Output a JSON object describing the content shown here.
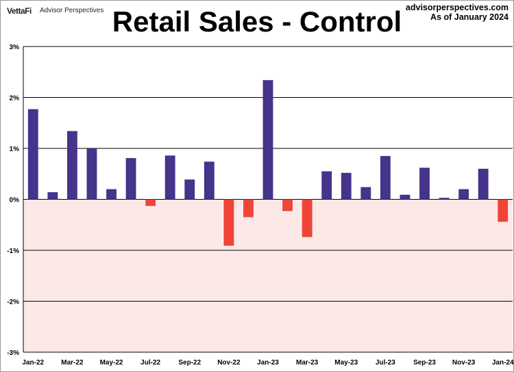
{
  "header": {
    "logo_brand": "VettaFi",
    "logo_sub": "Advisor Perspectives",
    "site": "advisorperspectives.com",
    "as_of": "As of January 2024"
  },
  "chart_data": {
    "type": "bar",
    "title": "Retail Sales - Control",
    "xlabel": "",
    "ylabel": "",
    "ylim": [
      -3,
      3
    ],
    "yticks": [
      3,
      2,
      1,
      0,
      -1,
      -2,
      -3
    ],
    "ytick_labels": [
      "3%",
      "2%",
      "1%",
      "0%",
      "-1%",
      "-2%",
      "-3%"
    ],
    "categories": [
      "Jan-22",
      "Feb-22",
      "Mar-22",
      "Apr-22",
      "May-22",
      "Jun-22",
      "Jul-22",
      "Aug-22",
      "Sep-22",
      "Oct-22",
      "Nov-22",
      "Dec-22",
      "Jan-23",
      "Feb-23",
      "Mar-23",
      "Apr-23",
      "May-23",
      "Jun-23",
      "Jul-23",
      "Aug-23",
      "Sep-23",
      "Oct-23",
      "Nov-23",
      "Dec-23",
      "Jan-24"
    ],
    "xtick_labels": [
      "Jan-22",
      "Mar-22",
      "May-22",
      "Jul-22",
      "Sep-22",
      "Nov-22",
      "Jan-23",
      "Mar-23",
      "May-23",
      "Jul-23",
      "Sep-23",
      "Nov-23",
      "Jan-24"
    ],
    "values": [
      1.77,
      0.14,
      1.34,
      1.0,
      0.2,
      0.81,
      -0.13,
      0.86,
      0.39,
      0.74,
      -0.91,
      -0.35,
      2.34,
      -0.23,
      -0.74,
      0.55,
      0.52,
      0.24,
      0.85,
      0.09,
      0.62,
      0.03,
      0.2,
      0.6,
      -0.44
    ],
    "colors": {
      "positive": "#46338c",
      "negative": "#f04438",
      "negative_zone": "#fde8e8",
      "grid": "#000000"
    }
  }
}
